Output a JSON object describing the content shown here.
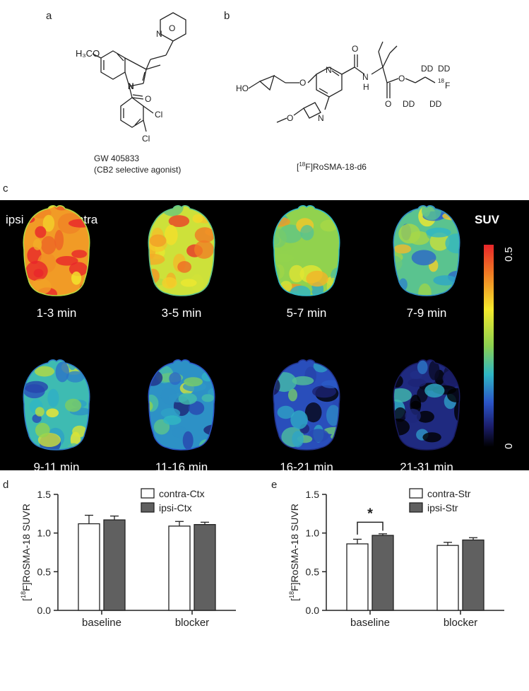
{
  "panel_a": {
    "letter": "a",
    "compound_name": "GW 405833",
    "compound_desc": "(CB2 selective agonist)",
    "atoms": [
      "H₃CO",
      "N",
      "N",
      "O",
      "O",
      "Cl",
      "Cl"
    ]
  },
  "panel_b": {
    "letter": "b",
    "compound_name_sup": "18",
    "compound_name_pre": "[",
    "compound_name_post": "F]RoSMA-18-d6",
    "atoms": [
      "HO",
      "O",
      "N",
      "N",
      "O",
      "N",
      "H",
      "O",
      "O",
      "O",
      "DD",
      "DD",
      "DD",
      "DD",
      "18",
      "F"
    ]
  },
  "panel_c": {
    "letter": "c",
    "ipsi_label": "ipsi",
    "contra_label": "contra",
    "colorbar_title": "SUV",
    "colorbar_max": "0.5",
    "colorbar_min": "0",
    "frames": [
      {
        "label": "1-3 min",
        "intensity": 0.95
      },
      {
        "label": "3-5 min",
        "intensity": 0.72
      },
      {
        "label": "5-7 min",
        "intensity": 0.6
      },
      {
        "label": "7-9 min",
        "intensity": 0.5
      },
      {
        "label": "9-11 min",
        "intensity": 0.45
      },
      {
        "label": "11-16 min",
        "intensity": 0.36
      },
      {
        "label": "16-21 min",
        "intensity": 0.24
      },
      {
        "label": "21-31 min",
        "intensity": 0.15
      }
    ]
  },
  "chart_data": [
    {
      "type": "bar",
      "panel": "d",
      "ylabel_pre": "[",
      "ylabel_sup": "18",
      "ylabel_post": "F]RoSMA-18 SUVR",
      "categories": [
        "baseline",
        "blocker"
      ],
      "ylim": [
        0,
        1.5
      ],
      "yticks": [
        "0.0",
        "0.5",
        "1.0",
        "1.5"
      ],
      "series": [
        {
          "name": "contra-Ctx",
          "values": [
            1.12,
            1.09
          ],
          "errors": [
            0.11,
            0.06
          ],
          "color": "#ffffff"
        },
        {
          "name": "ipsi-Ctx",
          "values": [
            1.17,
            1.11
          ],
          "errors": [
            0.05,
            0.03
          ],
          "color": "#606060"
        }
      ],
      "annotation": ""
    },
    {
      "type": "bar",
      "panel": "e",
      "ylabel_pre": "[",
      "ylabel_sup": "18",
      "ylabel_post": "F]RoSMA-18 SUVR",
      "categories": [
        "baseline",
        "blocker"
      ],
      "ylim": [
        0,
        1.5
      ],
      "yticks": [
        "0.0",
        "0.5",
        "1.0",
        "1.5"
      ],
      "series": [
        {
          "name": "contra-Str",
          "values": [
            0.86,
            0.84
          ],
          "errors": [
            0.06,
            0.04
          ],
          "color": "#ffffff"
        },
        {
          "name": "ipsi-Str",
          "values": [
            0.97,
            0.91
          ],
          "errors": [
            0.02,
            0.03
          ],
          "color": "#606060"
        }
      ],
      "annotation": "*"
    }
  ]
}
